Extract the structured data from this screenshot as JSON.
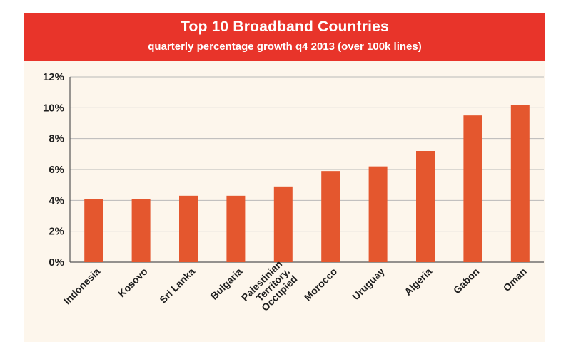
{
  "colors": {
    "banner": "#e8342a",
    "bar": "#e4572e",
    "background": "#fdf6ec",
    "grid": "#b9b9b9"
  },
  "chart_data": {
    "type": "bar",
    "title": "Top 10 Broadband Countries",
    "subtitle": "quarterly percentage growth q4 2013 (over 100k lines)",
    "xlabel": "",
    "ylabel": "",
    "ylim": [
      0,
      12
    ],
    "grid": true,
    "y_ticks": [
      "0%",
      "2%",
      "4%",
      "6%",
      "8%",
      "10%",
      "12%"
    ],
    "categories": [
      "Indonesia",
      "Kosovo",
      "Sri Lanka",
      "Bulgaria",
      "Palestinian Territory, Occupied",
      "Morocco",
      "Uruguay",
      "Algeria",
      "Gabon",
      "Oman"
    ],
    "category_label_lines": [
      [
        "Indonesia"
      ],
      [
        "Kosovo"
      ],
      [
        "Sri Lanka"
      ],
      [
        "Bulgaria"
      ],
      [
        "Palestinian",
        "Territory,",
        "Occupied"
      ],
      [
        "Morocco"
      ],
      [
        "Uruguay"
      ],
      [
        "Algeria"
      ],
      [
        "Gabon"
      ],
      [
        "Oman"
      ]
    ],
    "values": [
      4.1,
      4.1,
      4.3,
      4.3,
      4.9,
      5.9,
      6.2,
      7.2,
      9.5,
      10.2
    ],
    "unit": "%"
  }
}
